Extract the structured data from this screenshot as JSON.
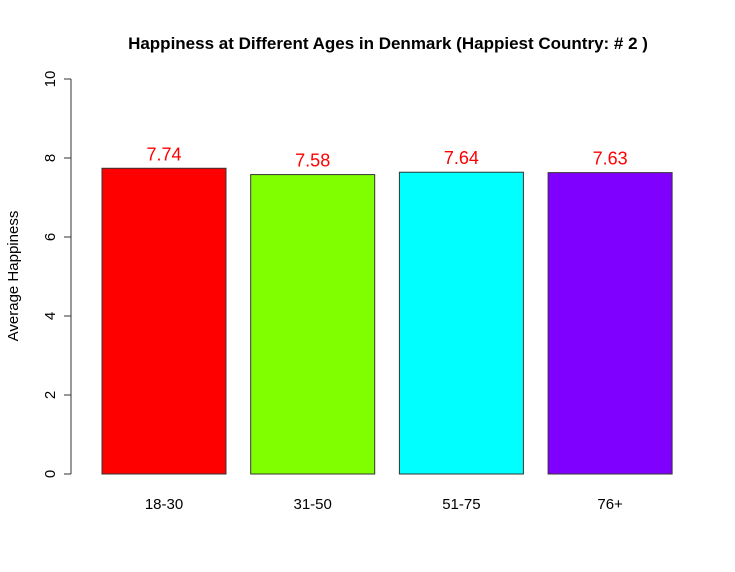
{
  "chart_data": {
    "type": "bar",
    "title": "Happiness at Different Ages in Denmark (Happiest Country: # 2 )",
    "xlabel": "",
    "ylabel": "Average Happiness",
    "categories": [
      "18-30",
      "31-50",
      "51-75",
      "76+"
    ],
    "values": [
      7.74,
      7.58,
      7.64,
      7.63
    ],
    "value_labels": [
      "7.74",
      "7.58",
      "7.64",
      "7.63"
    ],
    "colors": [
      "#ff0000",
      "#80ff00",
      "#00ffff",
      "#8000ff"
    ],
    "label_color": "#ff0000",
    "ylim": [
      0,
      10
    ],
    "yticks": [
      0,
      2,
      4,
      6,
      8,
      10
    ],
    "ytick_labels": [
      "0",
      "2",
      "4",
      "6",
      "8",
      "10"
    ],
    "grid": false,
    "legend": "none"
  }
}
